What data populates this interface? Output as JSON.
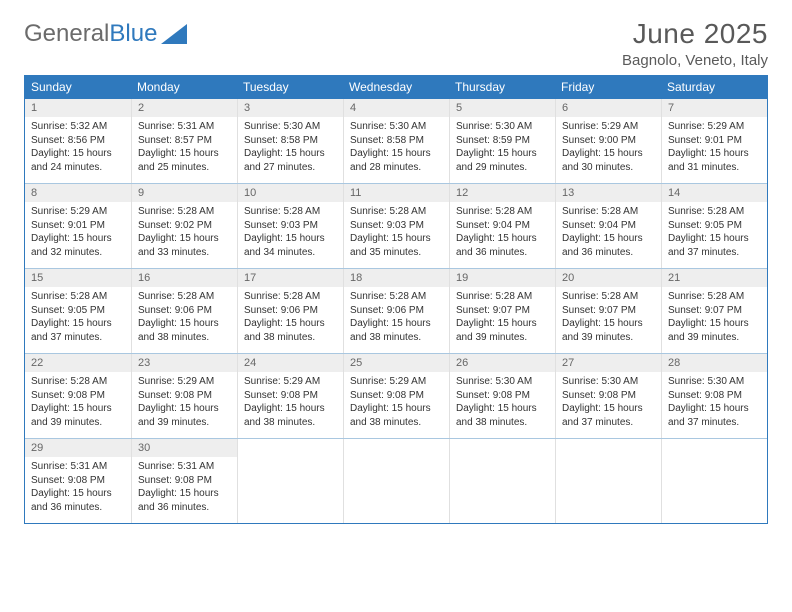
{
  "logo": {
    "text1": "General",
    "text2": "Blue"
  },
  "title": "June 2025",
  "location": "Bagnolo, Veneto, Italy",
  "colors": {
    "header_blue": "#2f79bd",
    "day_num_bg": "#eeeeee",
    "text_gray": "#595959"
  },
  "day_names": [
    "Sunday",
    "Monday",
    "Tuesday",
    "Wednesday",
    "Thursday",
    "Friday",
    "Saturday"
  ],
  "weeks": [
    [
      {
        "n": "1",
        "sr": "5:32 AM",
        "ss": "8:56 PM",
        "dl": "15 hours and 24 minutes."
      },
      {
        "n": "2",
        "sr": "5:31 AM",
        "ss": "8:57 PM",
        "dl": "15 hours and 25 minutes."
      },
      {
        "n": "3",
        "sr": "5:30 AM",
        "ss": "8:58 PM",
        "dl": "15 hours and 27 minutes."
      },
      {
        "n": "4",
        "sr": "5:30 AM",
        "ss": "8:58 PM",
        "dl": "15 hours and 28 minutes."
      },
      {
        "n": "5",
        "sr": "5:30 AM",
        "ss": "8:59 PM",
        "dl": "15 hours and 29 minutes."
      },
      {
        "n": "6",
        "sr": "5:29 AM",
        "ss": "9:00 PM",
        "dl": "15 hours and 30 minutes."
      },
      {
        "n": "7",
        "sr": "5:29 AM",
        "ss": "9:01 PM",
        "dl": "15 hours and 31 minutes."
      }
    ],
    [
      {
        "n": "8",
        "sr": "5:29 AM",
        "ss": "9:01 PM",
        "dl": "15 hours and 32 minutes."
      },
      {
        "n": "9",
        "sr": "5:28 AM",
        "ss": "9:02 PM",
        "dl": "15 hours and 33 minutes."
      },
      {
        "n": "10",
        "sr": "5:28 AM",
        "ss": "9:03 PM",
        "dl": "15 hours and 34 minutes."
      },
      {
        "n": "11",
        "sr": "5:28 AM",
        "ss": "9:03 PM",
        "dl": "15 hours and 35 minutes."
      },
      {
        "n": "12",
        "sr": "5:28 AM",
        "ss": "9:04 PM",
        "dl": "15 hours and 36 minutes."
      },
      {
        "n": "13",
        "sr": "5:28 AM",
        "ss": "9:04 PM",
        "dl": "15 hours and 36 minutes."
      },
      {
        "n": "14",
        "sr": "5:28 AM",
        "ss": "9:05 PM",
        "dl": "15 hours and 37 minutes."
      }
    ],
    [
      {
        "n": "15",
        "sr": "5:28 AM",
        "ss": "9:05 PM",
        "dl": "15 hours and 37 minutes."
      },
      {
        "n": "16",
        "sr": "5:28 AM",
        "ss": "9:06 PM",
        "dl": "15 hours and 38 minutes."
      },
      {
        "n": "17",
        "sr": "5:28 AM",
        "ss": "9:06 PM",
        "dl": "15 hours and 38 minutes."
      },
      {
        "n": "18",
        "sr": "5:28 AM",
        "ss": "9:06 PM",
        "dl": "15 hours and 38 minutes."
      },
      {
        "n": "19",
        "sr": "5:28 AM",
        "ss": "9:07 PM",
        "dl": "15 hours and 39 minutes."
      },
      {
        "n": "20",
        "sr": "5:28 AM",
        "ss": "9:07 PM",
        "dl": "15 hours and 39 minutes."
      },
      {
        "n": "21",
        "sr": "5:28 AM",
        "ss": "9:07 PM",
        "dl": "15 hours and 39 minutes."
      }
    ],
    [
      {
        "n": "22",
        "sr": "5:28 AM",
        "ss": "9:08 PM",
        "dl": "15 hours and 39 minutes."
      },
      {
        "n": "23",
        "sr": "5:29 AM",
        "ss": "9:08 PM",
        "dl": "15 hours and 39 minutes."
      },
      {
        "n": "24",
        "sr": "5:29 AM",
        "ss": "9:08 PM",
        "dl": "15 hours and 38 minutes."
      },
      {
        "n": "25",
        "sr": "5:29 AM",
        "ss": "9:08 PM",
        "dl": "15 hours and 38 minutes."
      },
      {
        "n": "26",
        "sr": "5:30 AM",
        "ss": "9:08 PM",
        "dl": "15 hours and 38 minutes."
      },
      {
        "n": "27",
        "sr": "5:30 AM",
        "ss": "9:08 PM",
        "dl": "15 hours and 37 minutes."
      },
      {
        "n": "28",
        "sr": "5:30 AM",
        "ss": "9:08 PM",
        "dl": "15 hours and 37 minutes."
      }
    ],
    [
      {
        "n": "29",
        "sr": "5:31 AM",
        "ss": "9:08 PM",
        "dl": "15 hours and 36 minutes."
      },
      {
        "n": "30",
        "sr": "5:31 AM",
        "ss": "9:08 PM",
        "dl": "15 hours and 36 minutes."
      },
      null,
      null,
      null,
      null,
      null
    ]
  ],
  "labels": {
    "sunrise": "Sunrise:",
    "sunset": "Sunset:",
    "daylight": "Daylight:"
  }
}
